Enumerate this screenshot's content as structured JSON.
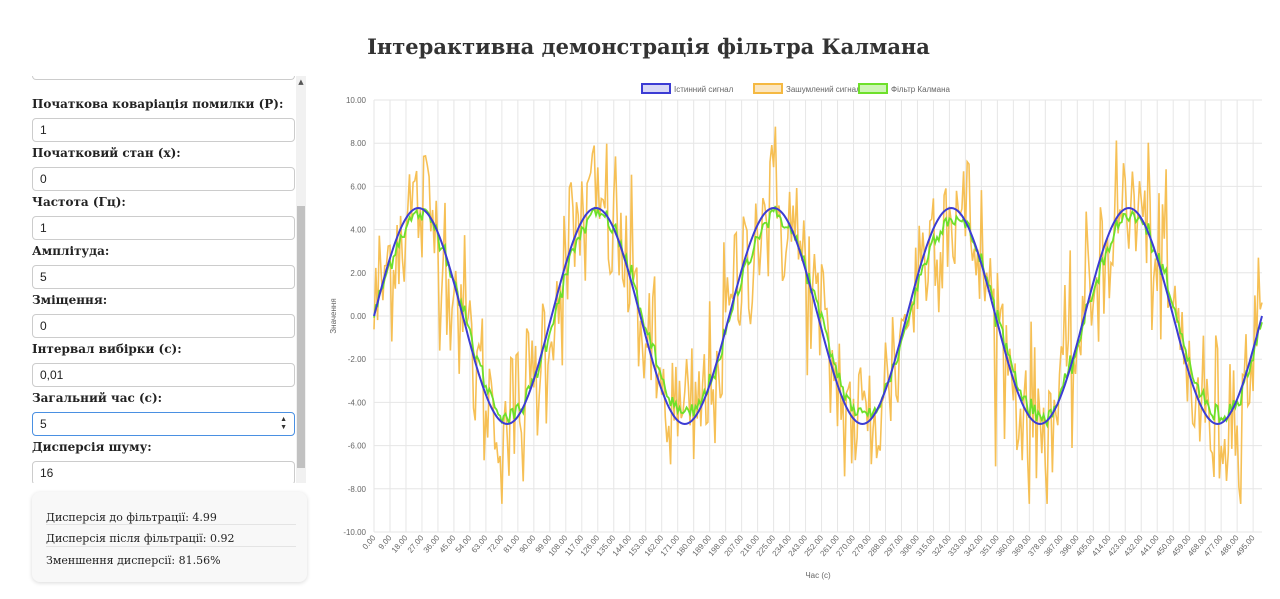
{
  "page": {
    "title": "Інтерактивна демонстрація фільтра Калмана"
  },
  "controls": {
    "fields": [
      {
        "label": "Початкова коваріація помилки (P):",
        "value": "1"
      },
      {
        "label": "Початковий стан (x):",
        "value": "0"
      },
      {
        "label": "Частота (Гц):",
        "value": "1"
      },
      {
        "label": "Амплітуда:",
        "value": "5"
      },
      {
        "label": "Зміщення:",
        "value": "0"
      },
      {
        "label": "Інтервал вибірки (с):",
        "value": "0,01"
      },
      {
        "label": "Загальний час (с):",
        "value": "5"
      },
      {
        "label": "Дисперсія шуму:",
        "value": "16"
      }
    ]
  },
  "stats": {
    "before": "Дисперсія до фільтрації: 4.99",
    "after": "Дисперсія після фільтрації: 0.92",
    "reduction": "Зменшення дисперсії: 81.56%"
  },
  "chart_data": {
    "type": "line",
    "xlabel": "Час (с)",
    "ylabel": "Значення",
    "ylim": [
      -10,
      10
    ],
    "yticks": [
      "10.00",
      "8.00",
      "6.00",
      "4.00",
      "2.00",
      "0.00",
      "-2.00",
      "-4.00",
      "-6.00",
      "-8.00",
      "-10.00"
    ],
    "xticks": [
      "0.00",
      "9.00",
      "18.00",
      "27.00",
      "36.00",
      "45.00",
      "54.00",
      "63.00",
      "72.00",
      "81.00",
      "90.00",
      "99.00",
      "108.00",
      "117.00",
      "126.00",
      "135.00",
      "144.00",
      "153.00",
      "162.00",
      "171.00",
      "180.00",
      "189.00",
      "198.00",
      "207.00",
      "216.00",
      "225.00",
      "234.00",
      "243.00",
      "252.00",
      "261.00",
      "270.00",
      "279.00",
      "288.00",
      "297.00",
      "306.00",
      "315.00",
      "324.00",
      "333.00",
      "342.00",
      "351.00",
      "360.00",
      "369.00",
      "378.00",
      "387.00",
      "396.00",
      "405.00",
      "414.00",
      "423.00",
      "432.00",
      "441.00",
      "450.00",
      "459.00",
      "468.00",
      "477.00",
      "486.00",
      "495.00"
    ],
    "x_range": [
      0,
      500
    ],
    "grid": true,
    "legend_position": "top",
    "series": [
      {
        "name": "Істинний сигнал",
        "color": "#3c3cd4",
        "amplitude": 5,
        "frequency": 1,
        "offset": 0,
        "dt": 0.01,
        "points": 501
      },
      {
        "name": "Зашумлений сигнал",
        "color": "#f5b942",
        "noise_variance": 16
      },
      {
        "name": "Фільтр Калмана",
        "color": "#6ee02a"
      }
    ]
  }
}
